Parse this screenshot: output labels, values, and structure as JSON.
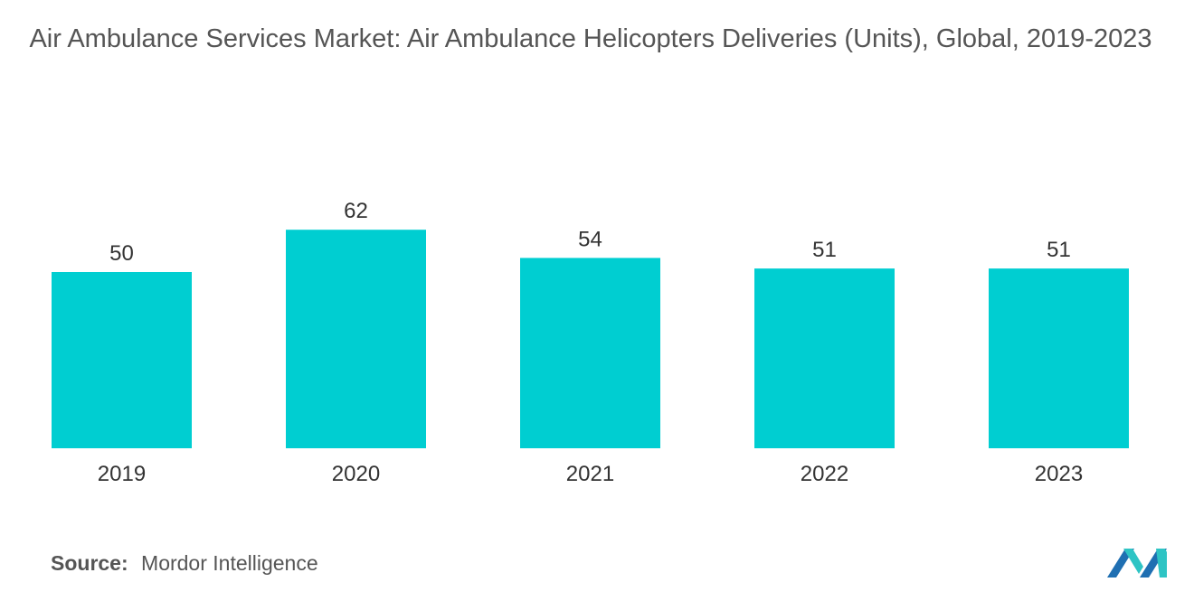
{
  "title": "Air Ambulance Services Market: Air Ambulance Helicopters Deliveries (Units), Global, 2019-2023",
  "source": {
    "label": "Source:",
    "value": "Mordor Intelligence"
  },
  "logo": {
    "icon": "mordor-intelligence-logo",
    "color_dark": "#1f6fb2",
    "color_light": "#2ec4c4"
  },
  "colors": {
    "bar": "#00CED1"
  },
  "chart_data": {
    "type": "bar",
    "title": "Air Ambulance Services Market: Air Ambulance Helicopters Deliveries (Units), Global, 2019-2023",
    "categories": [
      "2019",
      "2020",
      "2021",
      "2022",
      "2023"
    ],
    "values": [
      50,
      62,
      54,
      51,
      51
    ],
    "data_labels": [
      "50",
      "62",
      "54",
      "51",
      "51"
    ],
    "xlabel": "",
    "ylabel": "",
    "ylim": [
      0,
      62
    ],
    "grid": false,
    "legend": "none"
  }
}
